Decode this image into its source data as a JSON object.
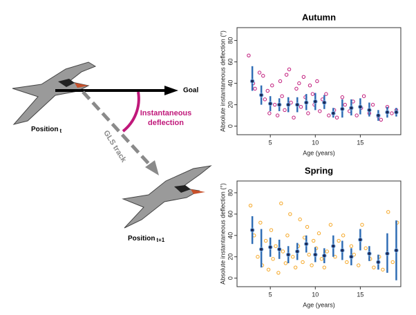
{
  "diagram": {
    "goal": "Goal",
    "deflection": [
      "Instantaneous",
      "deflection"
    ],
    "track": "GLS track",
    "position_1": {
      "label": "Position",
      "subscript": "t"
    },
    "position_2": {
      "label": "Position",
      "subscript": "t+1"
    }
  },
  "chart_data": [
    {
      "type": "scatter",
      "title": "Autumn",
      "xlabel": "Age (years)",
      "ylabel": "Absolute instantaneous deflection (°)",
      "xlim": [
        1.3,
        19.5
      ],
      "ylim": [
        -8,
        92
      ],
      "xticks": [
        5,
        10,
        15
      ],
      "yticks": [
        0,
        20,
        40,
        60,
        80
      ],
      "series": [
        {
          "style": "points",
          "color": "#c0187a",
          "x": [
            2.6,
            3.1,
            3.3,
            3.8,
            4.2,
            4.4,
            4.7,
            4.9,
            5.2,
            5.5,
            5.8,
            6.1,
            6.3,
            6.6,
            6.8,
            7.1,
            7.3,
            7.6,
            7.9,
            8.2,
            8.4,
            8.7,
            8.9,
            9.2,
            9.4,
            9.7,
            9.9,
            10.2,
            10.5,
            10.8,
            11.2,
            11.5,
            12.1,
            12.4,
            13.0,
            13.3,
            13.8,
            14.2,
            14.6,
            15.1,
            15.4,
            16.0,
            16.4,
            17.0,
            17.3,
            18.0,
            18.5,
            19.0
          ],
          "values": [
            66,
            40,
            35,
            50,
            47,
            25,
            33,
            12,
            38,
            20,
            10,
            42,
            28,
            15,
            48,
            53,
            22,
            8,
            35,
            40,
            18,
            46,
            27,
            12,
            38,
            30,
            20,
            42,
            14,
            25,
            30,
            10,
            15,
            8,
            27,
            20,
            14,
            23,
            10,
            17,
            28,
            12,
            20,
            9,
            6,
            18,
            12,
            15
          ]
        },
        {
          "style": "errorbar",
          "color": "#2f6db5",
          "x": [
            3,
            4,
            5,
            6,
            7,
            8,
            9,
            10,
            11,
            12,
            13,
            14,
            15,
            16,
            17,
            18,
            19
          ],
          "values": [
            42,
            29,
            21,
            20,
            20,
            20,
            22,
            23,
            22,
            12,
            16,
            17,
            18,
            15,
            10,
            13,
            13
          ],
          "lower": [
            33,
            20,
            14,
            14,
            13,
            13,
            15,
            15,
            16,
            8,
            8,
            10,
            11,
            9,
            5,
            8,
            9
          ],
          "upper": [
            56,
            38,
            28,
            26,
            27,
            27,
            30,
            31,
            29,
            17,
            25,
            25,
            26,
            22,
            15,
            18,
            17
          ]
        }
      ]
    },
    {
      "type": "scatter",
      "title": "Spring",
      "xlabel": "Age (years)",
      "ylabel": "Absolute instantaneous deflection (°)",
      "xlim": [
        1.3,
        19.5
      ],
      "ylim": [
        -8,
        91
      ],
      "xticks": [
        5,
        10,
        15
      ],
      "yticks": [
        0,
        20,
        40,
        60,
        80
      ],
      "series": [
        {
          "style": "points",
          "color": "#f5a623",
          "x": [
            2.8,
            3.2,
            3.6,
            3.9,
            4.1,
            4.5,
            4.8,
            5.1,
            5.3,
            5.6,
            5.9,
            6.2,
            6.4,
            6.7,
            6.9,
            7.2,
            7.5,
            7.8,
            8.1,
            8.3,
            8.6,
            8.8,
            9.1,
            9.3,
            9.6,
            9.8,
            10.1,
            10.4,
            10.7,
            11.0,
            11.3,
            11.7,
            12.2,
            12.6,
            13.1,
            13.5,
            14.0,
            14.3,
            14.8,
            15.2,
            15.6,
            16.1,
            16.5,
            17.1,
            17.5,
            18.1,
            18.6,
            19.1
          ],
          "values": [
            68,
            40,
            20,
            52,
            12,
            35,
            8,
            45,
            18,
            30,
            5,
            70,
            25,
            14,
            40,
            60,
            20,
            10,
            30,
            55,
            15,
            38,
            48,
            22,
            12,
            35,
            28,
            42,
            18,
            10,
            25,
            50,
            20,
            35,
            40,
            15,
            30,
            22,
            12,
            50,
            28,
            18,
            10,
            20,
            8,
            62,
            15,
            52
          ]
        },
        {
          "style": "errorbar",
          "color": "#2f6db5",
          "x": [
            3,
            4,
            5,
            6,
            7,
            8,
            9,
            10,
            11,
            12,
            13,
            14,
            15,
            16,
            17,
            18,
            19
          ],
          "values": [
            45,
            27,
            29,
            27,
            22,
            25,
            32,
            22,
            21,
            30,
            26,
            20,
            36,
            23,
            15,
            23,
            26
          ],
          "lower": [
            32,
            10,
            20,
            18,
            14,
            17,
            24,
            15,
            14,
            20,
            17,
            12,
            26,
            16,
            8,
            5,
            -2
          ],
          "upper": [
            58,
            46,
            38,
            36,
            30,
            33,
            40,
            29,
            28,
            40,
            35,
            28,
            46,
            30,
            22,
            42,
            54
          ]
        }
      ]
    }
  ]
}
